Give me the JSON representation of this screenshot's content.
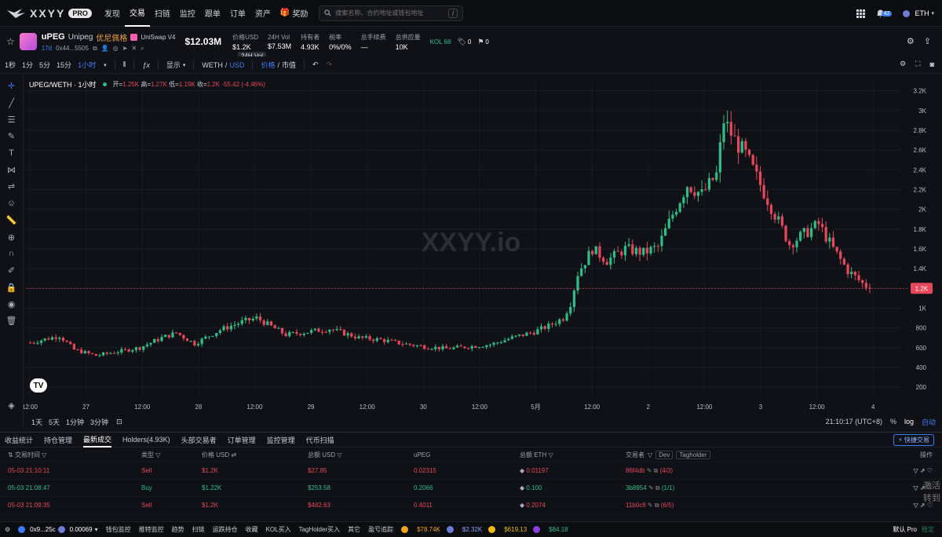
{
  "nav": {
    "brand": "XXYY",
    "pro": "PRO",
    "items": [
      "发现",
      "交易",
      "扫链",
      "监控",
      "跟单",
      "订单",
      "资产",
      "奖励"
    ],
    "active_index": 1,
    "search_placeholder": "搜索名称、合约地址或钱包地址",
    "search_shortcut": "/",
    "notif_count": "42",
    "chain": "ETH"
  },
  "token": {
    "symbol": "uPEG",
    "name": "Unipeg",
    "tag": "优尼佩格",
    "dex": "UniSwap V4",
    "age": "17d",
    "address": "0x44...5505",
    "mcap": "$12.03M",
    "stats": [
      {
        "k": "价格USD",
        "v": "$1.2K"
      },
      {
        "k": "24H Vol",
        "v": "$7.53M"
      },
      {
        "k": "持有者",
        "v": "4.93K"
      },
      {
        "k": "税率",
        "v": "0%/0%"
      },
      {
        "k": "总手续费",
        "v": "—"
      },
      {
        "k": "总供应量",
        "v": "10K"
      }
    ],
    "kol": "KOL 68",
    "tag_count": "0",
    "flag_count": "0",
    "tooltip": "24H Vol"
  },
  "toolbar": {
    "intervals": [
      "1秒",
      "1分",
      "5分",
      "15分",
      "1小时"
    ],
    "active_interval": "1小时",
    "display": "显示",
    "pair_base": "WETH",
    "pair_quote": "USD",
    "mode_price": "价格",
    "mode_mcap": "市值"
  },
  "chart_data": {
    "type": "candlestick",
    "title": "UPEG/WETH · 1小时",
    "ohlc_label": {
      "o": "1.25K",
      "h": "1.27K",
      "l": "1.19K",
      "c": "1.2K",
      "chg": "-55.42 (-4.46%)"
    },
    "watermark": "XXYY.io",
    "y_ticks": [
      200,
      400,
      600,
      800,
      1000,
      1200,
      1400,
      1600,
      1800,
      2000,
      2200,
      2400,
      2600,
      2800,
      3000,
      3200
    ],
    "y_tick_labels": [
      "200",
      "400",
      "600",
      "800",
      "1K",
      "1.2K",
      "1.4K",
      "1.6K",
      "1.8K",
      "2K",
      "2.2K",
      "2.4K",
      "2.6K",
      "2.8K",
      "3K",
      "3.2K"
    ],
    "ylim": [
      90,
      3300
    ],
    "x_ticks": [
      "12:00",
      "27",
      "12:00",
      "28",
      "12:00",
      "29",
      "12:00",
      "30",
      "12:00",
      "5月",
      "12:00",
      "2",
      "12:00",
      "3",
      "12:00",
      "4"
    ],
    "last_price": 1200,
    "last_price_label": "1.2K",
    "anchors": [
      [
        0,
        650
      ],
      [
        8,
        720
      ],
      [
        12,
        580
      ],
      [
        18,
        520
      ],
      [
        24,
        560
      ],
      [
        30,
        600
      ],
      [
        36,
        700
      ],
      [
        40,
        750
      ],
      [
        45,
        640
      ],
      [
        52,
        780
      ],
      [
        58,
        860
      ],
      [
        62,
        900
      ],
      [
        70,
        730
      ],
      [
        76,
        760
      ],
      [
        82,
        790
      ],
      [
        90,
        700
      ],
      [
        96,
        680
      ],
      [
        102,
        640
      ],
      [
        108,
        610
      ],
      [
        114,
        590
      ],
      [
        120,
        610
      ],
      [
        126,
        630
      ],
      [
        132,
        700
      ],
      [
        138,
        760
      ],
      [
        142,
        820
      ],
      [
        146,
        900
      ],
      [
        148,
        1050
      ],
      [
        150,
        1350
      ],
      [
        154,
        1600
      ],
      [
        158,
        1480
      ],
      [
        163,
        1600
      ],
      [
        168,
        1560
      ],
      [
        172,
        1620
      ],
      [
        176,
        1950
      ],
      [
        180,
        2250
      ],
      [
        184,
        2150
      ],
      [
        188,
        2350
      ],
      [
        190,
        2900
      ],
      [
        193,
        2700
      ],
      [
        196,
        2550
      ],
      [
        200,
        2250
      ],
      [
        204,
        1950
      ],
      [
        208,
        1650
      ],
      [
        212,
        1750
      ],
      [
        216,
        1850
      ],
      [
        220,
        1600
      ],
      [
        224,
        1380
      ],
      [
        228,
        1250
      ],
      [
        230,
        1200
      ]
    ],
    "candle_count": 231
  },
  "chart_footer": {
    "ranges": [
      "1天",
      "5天",
      "1分钟",
      "3分钟"
    ],
    "clock": "21:10:17 (UTC+8)",
    "pct": "%",
    "log": "log",
    "auto": "自动"
  },
  "panel": {
    "tabs": [
      "收益统计",
      "持仓管理",
      "最新成交",
      "Holders(4.93K)",
      "头部交易者",
      "订单管理",
      "监控管理",
      "代币扫描"
    ],
    "active_tab": 2,
    "quick_trade": "快捷交易",
    "headers": [
      "交易时间",
      "类型",
      "价格 USD",
      "总额 USD",
      "uPEG",
      "总额 ETH",
      "交易者",
      "操作"
    ],
    "header_tags": [
      "Dev",
      "Tagholder"
    ],
    "rows": [
      {
        "time": "05-03 21:10:11",
        "type": "Sell",
        "price": "$1.2K",
        "total_usd": "$27.85",
        "amount": "0.02315",
        "eth": "0.01197",
        "trader": "86f4db",
        "count": "(4/3)"
      },
      {
        "time": "05-03 21:08:47",
        "type": "Buy",
        "price": "$1.22K",
        "total_usd": "$253.58",
        "amount": "0.2066",
        "eth": "0.100",
        "trader": "3b8954",
        "count": "(1/1)"
      },
      {
        "time": "05-03 21:09:35",
        "type": "Sell",
        "price": "$1.2K",
        "total_usd": "$482.63",
        "amount": "0.4011",
        "eth": "0.2074",
        "trader": "11b0c8",
        "count": "(6/5)"
      }
    ],
    "side_text_1": "激活",
    "side_text_2": "转到"
  },
  "status": {
    "wallet": "0x9...25c",
    "balance": "0.00069",
    "items": [
      "钱包监控",
      "推特监控",
      "趋势",
      "扫链",
      "运跌持仓",
      "收藏",
      "KOL买入",
      "TagHolder买入",
      "其它"
    ],
    "pnl": "盈亏追踪",
    "prices": [
      "$78.74K",
      "$2.32K",
      "$619.13",
      "$84.18"
    ],
    "mode": "默认 Pro",
    "right_faint": "稳定"
  },
  "colors": {
    "up": "#2fbd85",
    "down": "#e6475a",
    "accent": "#3d7bf5",
    "bg": "#0f1116"
  }
}
